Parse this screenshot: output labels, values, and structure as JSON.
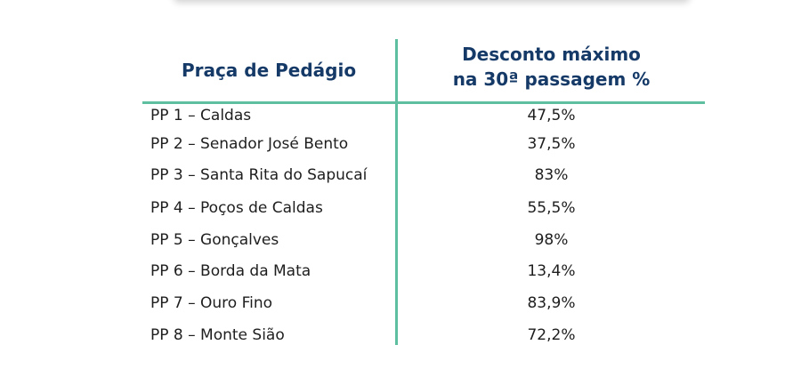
{
  "table": {
    "header": {
      "col1": "Praça de Pedágio",
      "col2_line1": "Desconto máximo",
      "col2_line2": "na 30ª passagem %"
    },
    "rows": [
      {
        "name": "PP 1 – Caldas",
        "value": "47,5%"
      },
      {
        "name": "PP 2 – Senador José Bento",
        "value": "37,5%"
      },
      {
        "name": "PP 3 – Santa Rita do Sapucaí",
        "value": "83%"
      },
      {
        "name": "PP 4 – Poços de Caldas",
        "value": "55,5%"
      },
      {
        "name": "PP 5 – Gonçalves",
        "value": "98%"
      },
      {
        "name": "PP 6 – Borda da Mata",
        "value": "13,4%"
      },
      {
        "name": "PP 7 – Ouro Fino",
        "value": "83,9%"
      },
      {
        "name": "PP 8 – Monte Sião",
        "value": "72,2%"
      }
    ]
  },
  "colors": {
    "header_text": "#163a68",
    "divider": "#5dbf9f",
    "body_text": "#1e1e1e"
  }
}
